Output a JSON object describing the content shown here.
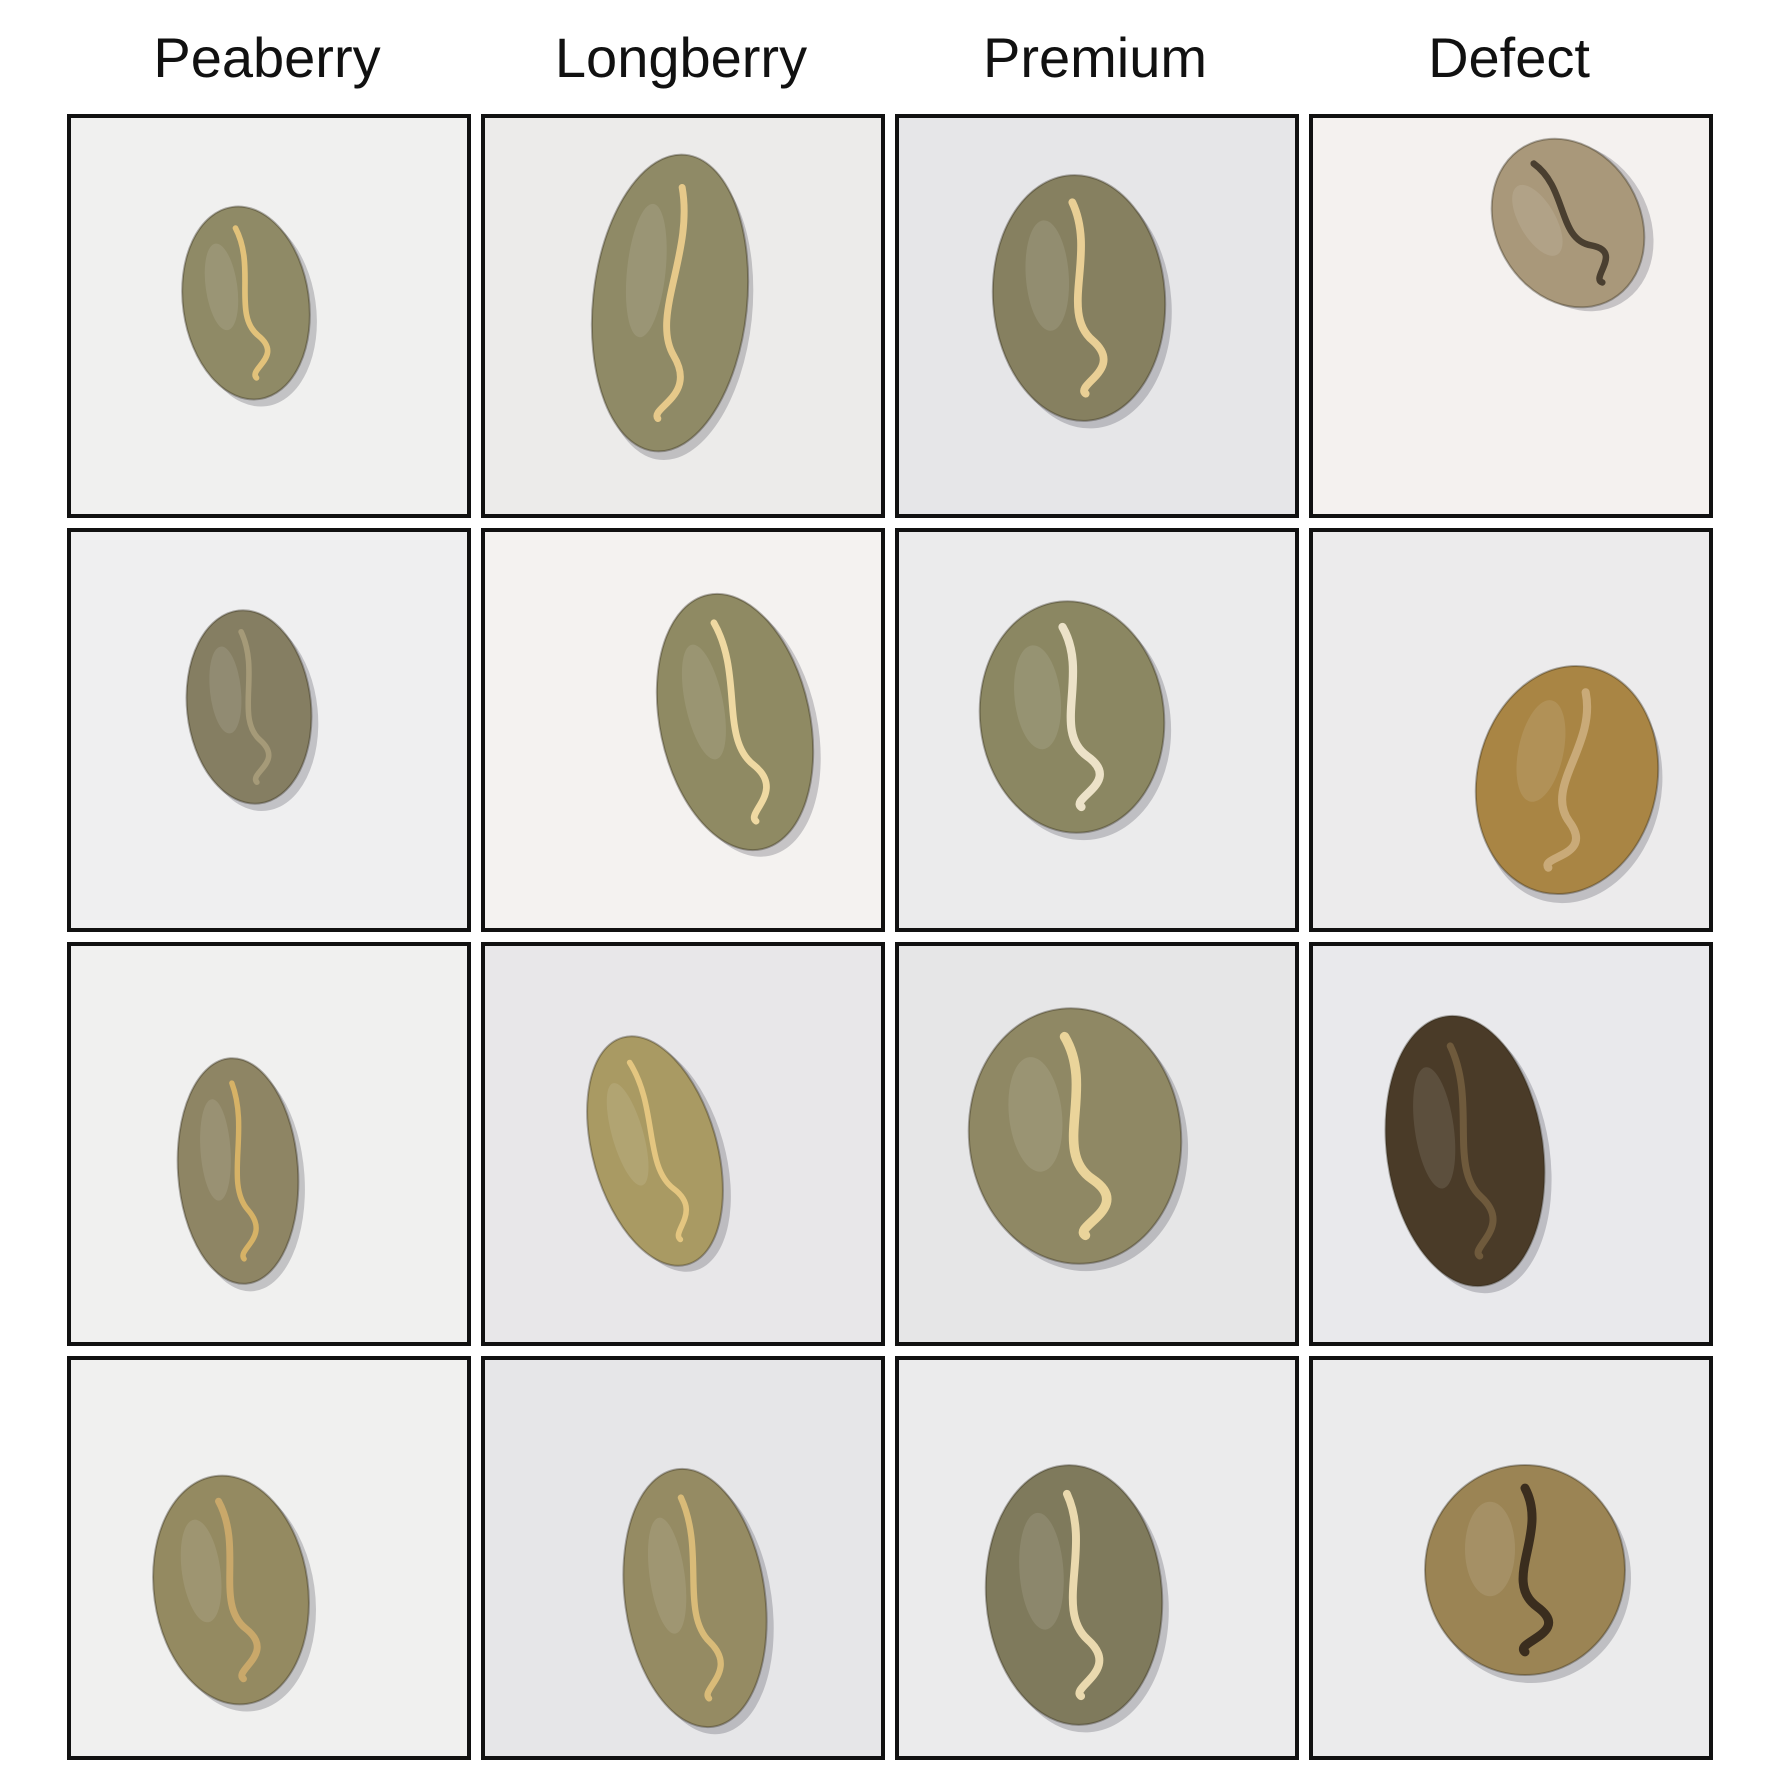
{
  "figure": {
    "columns": [
      {
        "label": "Peaberry",
        "samples": [
          {
            "bean_color": "#8f8a66",
            "crack_color": "#e2c27a",
            "bg": "#f0f0ef"
          },
          {
            "bean_color": "#857e62",
            "crack_color": "#a59a78",
            "bg": "#efeff0"
          },
          {
            "bean_color": "#8e8564",
            "crack_color": "#d6b266",
            "bg": "#f0f0ef"
          },
          {
            "bean_color": "#948a61",
            "crack_color": "#c9a86a",
            "bg": "#f0f0ef"
          }
        ]
      },
      {
        "label": "Longberry",
        "samples": [
          {
            "bean_color": "#8f8a66",
            "crack_color": "#e6c98a",
            "bg": "#ecebea"
          },
          {
            "bean_color": "#8f8a63",
            "crack_color": "#efd9a2",
            "bg": "#f4f2f0"
          },
          {
            "bean_color": "#a99a63",
            "crack_color": "#e4c680",
            "bg": "#e8e7e9"
          },
          {
            "bean_color": "#958b63",
            "crack_color": "#d9bb78",
            "bg": "#e6e6e8"
          }
        ]
      },
      {
        "label": "Premium",
        "samples": [
          {
            "bean_color": "#868060",
            "crack_color": "#e9cf95",
            "bg": "#e6e6e8"
          },
          {
            "bean_color": "#8b8762",
            "crack_color": "#ece2c8",
            "bg": "#ebebec"
          },
          {
            "bean_color": "#8f8864",
            "crack_color": "#ead49a",
            "bg": "#e6e6e7"
          },
          {
            "bean_color": "#7f7a5c",
            "crack_color": "#ead9ae",
            "bg": "#ebebec"
          }
        ]
      },
      {
        "label": "Defect",
        "samples": [
          {
            "bean_color": "#a9987a",
            "crack_color": "#4a3f30",
            "bg": "#f4f1ef"
          },
          {
            "bean_color": "#a98544",
            "crack_color": "#c9aa78",
            "bg": "#ecebec"
          },
          {
            "bean_color": "#4a3b28",
            "crack_color": "#6f5a3c",
            "bg": "#e9e9ec"
          },
          {
            "bean_color": "#9b8454",
            "crack_color": "#3a2d1e",
            "bg": "#ebebec"
          }
        ]
      }
    ]
  }
}
